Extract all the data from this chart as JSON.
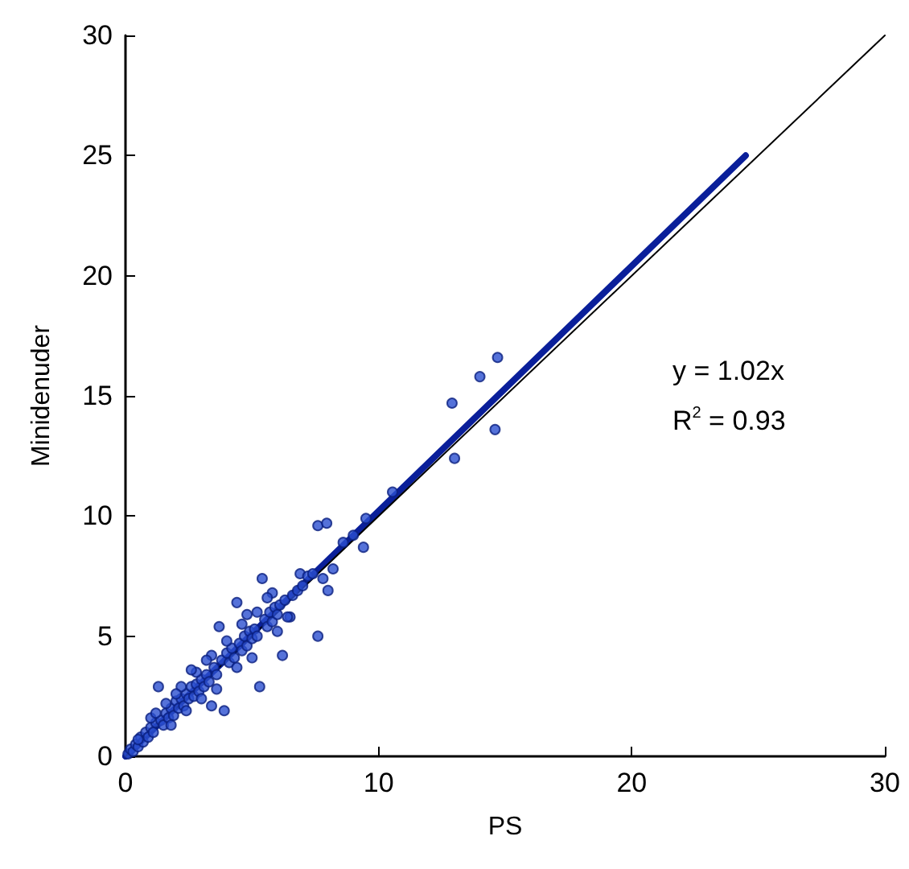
{
  "chart_data": {
    "type": "scatter",
    "xlabel": "PS",
    "ylabel": "Minidenuder",
    "xlim": [
      0,
      30
    ],
    "ylim": [
      0,
      30
    ],
    "xticks": [
      0,
      10,
      20,
      30
    ],
    "yticks": [
      0,
      5,
      10,
      15,
      20,
      25,
      30
    ],
    "grid": false,
    "annotations": [
      "y = 1.02x",
      "R$^{2}$ = 0.93"
    ],
    "series": [
      {
        "color": "#2a4fd0",
        "marker": "circle",
        "x": [
          14.7,
          14.0,
          12.9,
          14.6,
          13.0,
          10.55,
          7.6,
          7.95,
          9.5,
          9.0,
          8.6,
          9.4,
          8.0,
          7.6,
          8.2,
          5.4,
          4.4,
          3.7,
          1.3,
          5.3,
          3.4,
          3.9,
          6.2,
          6.5,
          6.9,
          0.1,
          0.2,
          0.3,
          0.4,
          0.5,
          0.6,
          0.7,
          0.8,
          0.9,
          1.0,
          1.1,
          1.2,
          1.4,
          1.5,
          1.6,
          1.7,
          1.8,
          1.9,
          2.0,
          2.1,
          2.2,
          2.3,
          2.4,
          2.5,
          2.6,
          2.7,
          2.8,
          2.9,
          3.0,
          3.1,
          3.2,
          3.3,
          3.5,
          3.6,
          3.8,
          4.0,
          4.1,
          4.2,
          4.3,
          4.5,
          4.6,
          4.7,
          4.8,
          4.9,
          5.0,
          5.1,
          5.2,
          5.5,
          5.6,
          5.7,
          5.8,
          5.9,
          6.0,
          6.1,
          6.3,
          6.6,
          6.8,
          7.0,
          7.2,
          7.4,
          1.0,
          1.6,
          2.2,
          2.8,
          3.4,
          4.0,
          4.6,
          5.2,
          5.8,
          3.0,
          3.6,
          4.4,
          5.0,
          2.4,
          1.8,
          6.4,
          7.8,
          0.5,
          1.2,
          2.0,
          4.8,
          5.6,
          6.0,
          3.2,
          2.6
        ],
        "values": [
          16.6,
          15.8,
          14.7,
          13.6,
          12.4,
          11.0,
          9.6,
          9.7,
          9.9,
          9.2,
          8.9,
          8.7,
          6.9,
          5.0,
          7.8,
          7.4,
          6.4,
          5.4,
          2.9,
          2.9,
          2.1,
          1.9,
          4.2,
          5.8,
          7.6,
          0.1,
          0.3,
          0.2,
          0.5,
          0.4,
          0.8,
          0.6,
          1.0,
          0.8,
          1.2,
          1.0,
          1.4,
          1.5,
          1.3,
          1.8,
          1.6,
          2.0,
          1.7,
          2.3,
          2.0,
          2.4,
          2.1,
          2.6,
          2.4,
          2.9,
          2.5,
          3.0,
          2.7,
          3.2,
          2.9,
          3.4,
          3.1,
          3.7,
          3.4,
          4.0,
          4.3,
          3.9,
          4.5,
          4.1,
          4.7,
          4.4,
          5.0,
          4.6,
          5.2,
          4.9,
          5.3,
          5.0,
          5.7,
          5.4,
          6.0,
          5.6,
          6.2,
          5.9,
          6.3,
          6.5,
          6.7,
          6.9,
          7.1,
          7.5,
          7.6,
          1.6,
          2.2,
          2.9,
          3.5,
          4.2,
          4.8,
          5.5,
          6.0,
          6.8,
          2.4,
          2.8,
          3.7,
          4.1,
          1.9,
          1.3,
          5.8,
          7.4,
          0.7,
          1.8,
          2.6,
          5.9,
          6.6,
          5.2,
          4.0,
          3.6
        ]
      },
      {
        "type": "line",
        "color": "#0a1f9a",
        "marker": "none",
        "x": [
          0,
          24.5
        ],
        "values": [
          0,
          25
        ]
      },
      {
        "type": "line",
        "color": "#000000",
        "marker": "none",
        "x": [
          0,
          30
        ],
        "values": [
          0,
          30
        ]
      }
    ]
  }
}
